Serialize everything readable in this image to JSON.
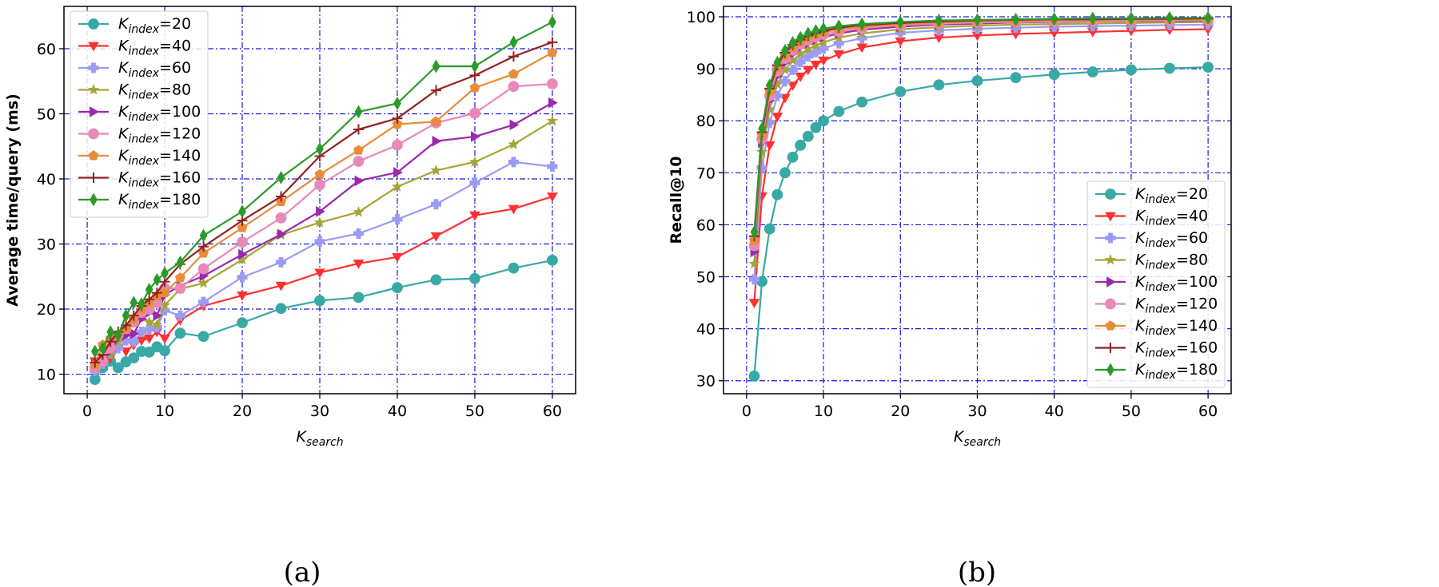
{
  "chart_data": [
    {
      "type": "line",
      "xlabel": "K",
      "xlabel_sub": "search",
      "ylabel": "Average time/query (ms)",
      "caption": "(a)",
      "xlim": [
        -3,
        63
      ],
      "ylim": [
        7,
        66.5
      ],
      "xticks": [
        0,
        10,
        20,
        30,
        40,
        50,
        60
      ],
      "yticks": [
        10,
        20,
        30,
        40,
        50,
        60
      ],
      "legend": "top-left",
      "x": [
        1,
        2,
        3,
        4,
        5,
        6,
        7,
        8,
        9,
        10,
        12,
        15,
        20,
        25,
        30,
        35,
        40,
        45,
        50,
        55,
        60
      ],
      "series": [
        {
          "name": "K",
          "sub": "index",
          "suffix": "=20",
          "color": "#38a9a5",
          "marker": "circle",
          "values": [
            9.2,
            11.0,
            12.0,
            11.0,
            11.9,
            12.5,
            13.5,
            13.4,
            14.2,
            13.6,
            16.3,
            15.8,
            17.9,
            20.1,
            21.3,
            21.8,
            23.3,
            24.5,
            24.7,
            26.3,
            27.5
          ]
        },
        {
          "name": "K",
          "sub": "index",
          "suffix": "=40",
          "color": "#ff3030",
          "marker": "triangle-down",
          "values": [
            12.0,
            11.5,
            12.5,
            14.0,
            13.5,
            14.5,
            15.2,
            15.5,
            16.5,
            15.5,
            18.3,
            20.5,
            22.1,
            23.6,
            25.6,
            27.0,
            28.0,
            31.2,
            34.4,
            35.4,
            37.3
          ]
        },
        {
          "name": "K",
          "sub": "index",
          "suffix": "=60",
          "color": "#9b9bf5",
          "marker": "plus",
          "values": [
            10.5,
            11.6,
            13.2,
            14.0,
            15.2,
            15.0,
            16.5,
            16.9,
            17.2,
            19.8,
            19.0,
            21.1,
            24.9,
            27.2,
            30.4,
            31.6,
            33.8,
            36.1,
            39.4,
            42.6,
            41.9
          ]
        },
        {
          "name": "K",
          "sub": "index",
          "suffix": "=80",
          "color": "#a5a535",
          "marker": "star",
          "values": [
            11.0,
            12.0,
            13.0,
            15.0,
            16.5,
            18.5,
            19.0,
            18.0,
            17.6,
            20.6,
            23.1,
            24.0,
            27.6,
            31.4,
            33.3,
            34.9,
            38.8,
            41.3,
            42.6,
            45.3,
            48.9
          ]
        },
        {
          "name": "K",
          "sub": "index",
          "suffix": "=100",
          "color": "#9a2aab",
          "marker": "triangle-right",
          "values": [
            11.5,
            12.5,
            13.5,
            15.5,
            16.0,
            16.2,
            18.5,
            19.5,
            19.0,
            22.2,
            23.6,
            25.1,
            28.4,
            31.5,
            35.0,
            39.7,
            41.0,
            45.8,
            46.5,
            48.3,
            51.7
          ]
        },
        {
          "name": "K",
          "sub": "index",
          "suffix": "=120",
          "color": "#e889b8",
          "marker": "circle",
          "values": [
            11.0,
            12.0,
            14.0,
            16.0,
            17.0,
            18.0,
            19.5,
            20.0,
            21.0,
            23.2,
            23.2,
            26.2,
            30.3,
            34.0,
            39.1,
            42.7,
            45.2,
            48.6,
            50.1,
            54.2,
            54.6
          ]
        },
        {
          "name": "K",
          "sub": "index",
          "suffix": "=140",
          "color": "#e88c3a",
          "marker": "pentagon",
          "values": [
            11.5,
            14.5,
            15.5,
            16.0,
            17.0,
            18.5,
            20.0,
            21.0,
            22.0,
            22.5,
            24.8,
            28.6,
            32.5,
            36.5,
            40.7,
            44.4,
            48.4,
            48.8,
            54.0,
            56.1,
            59.4
          ]
        },
        {
          "name": "K",
          "sub": "index",
          "suffix": "=160",
          "color": "#922323",
          "marker": "plus-thin",
          "values": [
            11.8,
            13.0,
            15.0,
            16.5,
            17.5,
            19.0,
            20.5,
            21.5,
            22.5,
            24.2,
            26.9,
            29.6,
            33.6,
            37.3,
            43.5,
            47.6,
            49.3,
            53.6,
            55.9,
            58.8,
            61.0
          ]
        },
        {
          "name": "K",
          "sub": "index",
          "suffix": "=180",
          "color": "#2b9a2b",
          "marker": "diamond",
          "values": [
            13.5,
            14.0,
            16.5,
            16.0,
            19.0,
            21.0,
            20.8,
            23.0,
            24.5,
            25.5,
            27.2,
            31.3,
            35.0,
            40.2,
            44.6,
            50.3,
            51.6,
            57.3,
            57.3,
            61.0,
            64.1
          ]
        }
      ]
    },
    {
      "type": "line",
      "xlabel": "K",
      "xlabel_sub": "search",
      "ylabel": "Recall@10",
      "caption": "(b)",
      "xlim": [
        -3,
        63
      ],
      "ylim": [
        27.5,
        102
      ],
      "xticks": [
        0,
        10,
        20,
        30,
        40,
        50,
        60
      ],
      "yticks": [
        30,
        40,
        50,
        60,
        70,
        80,
        90,
        100
      ],
      "legend": "bottom-right",
      "x": [
        1,
        2,
        3,
        4,
        5,
        6,
        7,
        8,
        9,
        10,
        12,
        15,
        20,
        25,
        30,
        35,
        40,
        45,
        50,
        55,
        60
      ],
      "series": [
        {
          "name": "K",
          "sub": "index",
          "suffix": "=20",
          "color": "#38a9a5",
          "marker": "circle",
          "values": [
            30.9,
            49.1,
            59.2,
            65.8,
            70.0,
            73.0,
            75.3,
            77.0,
            78.7,
            80.0,
            81.8,
            83.6,
            85.6,
            86.9,
            87.7,
            88.3,
            88.9,
            89.4,
            89.8,
            90.1,
            90.3
          ]
        },
        {
          "name": "K",
          "sub": "index",
          "suffix": "=40",
          "color": "#ff3030",
          "marker": "triangle-down",
          "values": [
            45.0,
            65.5,
            75.3,
            80.8,
            84.4,
            86.8,
            88.5,
            89.8,
            90.8,
            91.6,
            92.8,
            94.1,
            95.3,
            96.0,
            96.4,
            96.7,
            96.9,
            97.1,
            97.3,
            97.5,
            97.6
          ]
        },
        {
          "name": "K",
          "sub": "index",
          "suffix": "=60",
          "color": "#9b9bf5",
          "marker": "plus",
          "values": [
            49.5,
            71.0,
            79.6,
            84.8,
            87.6,
            89.8,
            91.3,
            92.4,
            93.2,
            93.9,
            94.9,
            95.9,
            96.9,
            97.4,
            97.7,
            97.9,
            98.1,
            98.2,
            98.3,
            98.4,
            98.5
          ]
        },
        {
          "name": "K",
          "sub": "index",
          "suffix": "=80",
          "color": "#a5a535",
          "marker": "star",
          "values": [
            52.5,
            74.0,
            82.2,
            87.0,
            89.8,
            91.6,
            92.9,
            93.8,
            94.5,
            95.1,
            96.0,
            96.8,
            97.6,
            98.0,
            98.3,
            98.5,
            98.6,
            98.7,
            98.8,
            98.9,
            99.0
          ]
        },
        {
          "name": "K",
          "sub": "index",
          "suffix": "=100",
          "color": "#9a2aab",
          "marker": "triangle-right",
          "values": [
            54.8,
            75.8,
            83.9,
            88.6,
            91.2,
            92.9,
            94.1,
            94.9,
            95.6,
            96.1,
            96.8,
            97.5,
            98.1,
            98.5,
            98.7,
            98.9,
            99.0,
            99.1,
            99.2,
            99.2,
            99.3
          ]
        },
        {
          "name": "K",
          "sub": "index",
          "suffix": "=120",
          "color": "#e889b8",
          "marker": "circle",
          "values": [
            56.0,
            76.5,
            84.8,
            89.5,
            92.0,
            93.6,
            94.7,
            95.5,
            96.1,
            96.6,
            97.2,
            97.8,
            98.4,
            98.7,
            98.9,
            99.0,
            99.1,
            99.2,
            99.3,
            99.3,
            99.4
          ]
        },
        {
          "name": "K",
          "sub": "index",
          "suffix": "=140",
          "color": "#e88c3a",
          "marker": "pentagon",
          "values": [
            57.0,
            77.2,
            85.6,
            90.2,
            92.6,
            94.1,
            95.2,
            96.0,
            96.6,
            97.0,
            97.6,
            98.1,
            98.6,
            98.9,
            99.1,
            99.2,
            99.3,
            99.4,
            99.4,
            99.5,
            99.5
          ]
        },
        {
          "name": "K",
          "sub": "index",
          "suffix": "=160",
          "color": "#922323",
          "marker": "plus-thin",
          "values": [
            57.8,
            77.8,
            86.2,
            90.7,
            93.1,
            94.6,
            95.6,
            96.4,
            96.9,
            97.3,
            97.9,
            98.4,
            98.8,
            99.1,
            99.3,
            99.4,
            99.5,
            99.5,
            99.6,
            99.6,
            99.7
          ]
        },
        {
          "name": "K",
          "sub": "index",
          "suffix": "=180",
          "color": "#2b9a2b",
          "marker": "diamond",
          "values": [
            58.6,
            78.5,
            86.8,
            91.2,
            93.5,
            95.0,
            96.0,
            96.8,
            97.3,
            97.7,
            98.2,
            98.6,
            99.0,
            99.3,
            99.4,
            99.5,
            99.6,
            99.7,
            99.7,
            99.8,
            99.8
          ]
        }
      ]
    }
  ]
}
